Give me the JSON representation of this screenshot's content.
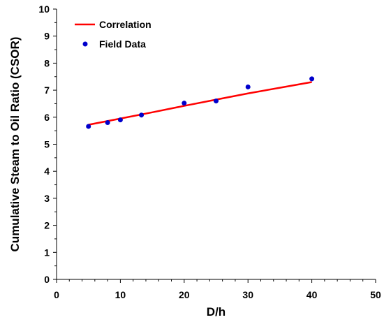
{
  "chart_data": {
    "type": "scatter",
    "xlabel": "D/h",
    "ylabel": "Cumulative Steam to Oil Ratio (CSOR)",
    "xlim": [
      0,
      50
    ],
    "ylim": [
      0,
      10
    ],
    "x_ticks": [
      0,
      10,
      20,
      30,
      40,
      50
    ],
    "y_ticks": [
      0,
      1,
      2,
      3,
      4,
      5,
      6,
      7,
      8,
      9,
      10
    ],
    "grid": false,
    "legend_position": "top-left",
    "series": [
      {
        "name": "Correlation",
        "kind": "line",
        "color": "#ff0000",
        "x": [
          5,
          10,
          15,
          20,
          25,
          30,
          35,
          40
        ],
        "y": [
          5.72,
          5.95,
          6.18,
          6.42,
          6.65,
          6.88,
          7.09,
          7.3
        ]
      },
      {
        "name": "Field Data",
        "kind": "scatter",
        "color": "#0000cc",
        "x": [
          5,
          8,
          10,
          13.3,
          20,
          25,
          30,
          40
        ],
        "y": [
          5.66,
          5.8,
          5.9,
          6.08,
          6.52,
          6.6,
          7.12,
          7.42
        ]
      }
    ]
  }
}
